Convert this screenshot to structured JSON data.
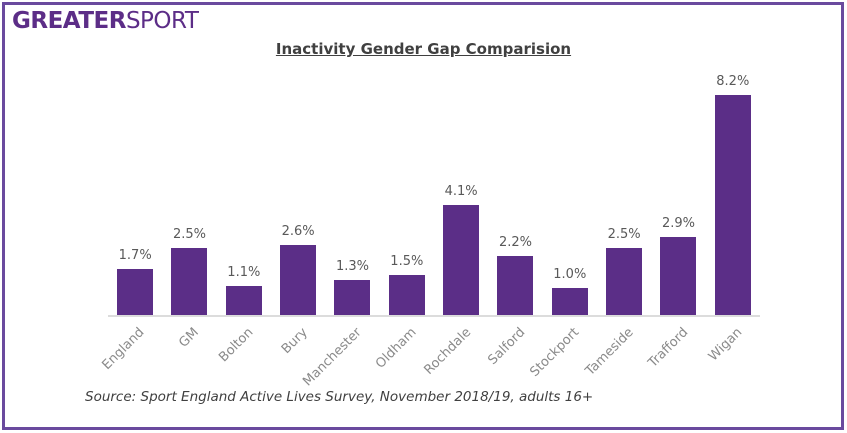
{
  "logo": {
    "bold": "GREATER",
    "light": "SPORT"
  },
  "chart_data": {
    "type": "bar",
    "title": "Inactivity Gender Gap Comparision",
    "categories": [
      "England",
      "GM",
      "Bolton",
      "Bury",
      "Manchester",
      "Oldham",
      "Rochdale",
      "Salford",
      "Stockport",
      "Tameside",
      "Trafford",
      "Wigan"
    ],
    "values": [
      1.7,
      2.5,
      1.1,
      2.6,
      1.3,
      1.5,
      4.1,
      2.2,
      1.0,
      2.5,
      2.9,
      8.2
    ],
    "value_labels": [
      "1.7%",
      "2.5%",
      "1.1%",
      "2.6%",
      "1.3%",
      "1.5%",
      "4.1%",
      "2.2%",
      "1.0%",
      "2.5%",
      "2.9%",
      "8.2%"
    ],
    "xlabel": "",
    "ylabel": "",
    "ylim": [
      0,
      8.5
    ],
    "gridlines": false,
    "legend": "none",
    "bar_color": "#5b2e87"
  },
  "source": "Source: Sport England Active Lives Survey, November 2018/19, adults 16+",
  "colors": {
    "brand_purple": "#5c2d87",
    "bar_purple": "#5b2e87",
    "frame_border": "#6a4a9e",
    "axis_line": "#dcdcdc",
    "value_label": "#595959",
    "category_label": "#8a8a8a",
    "title_text": "#404040"
  }
}
